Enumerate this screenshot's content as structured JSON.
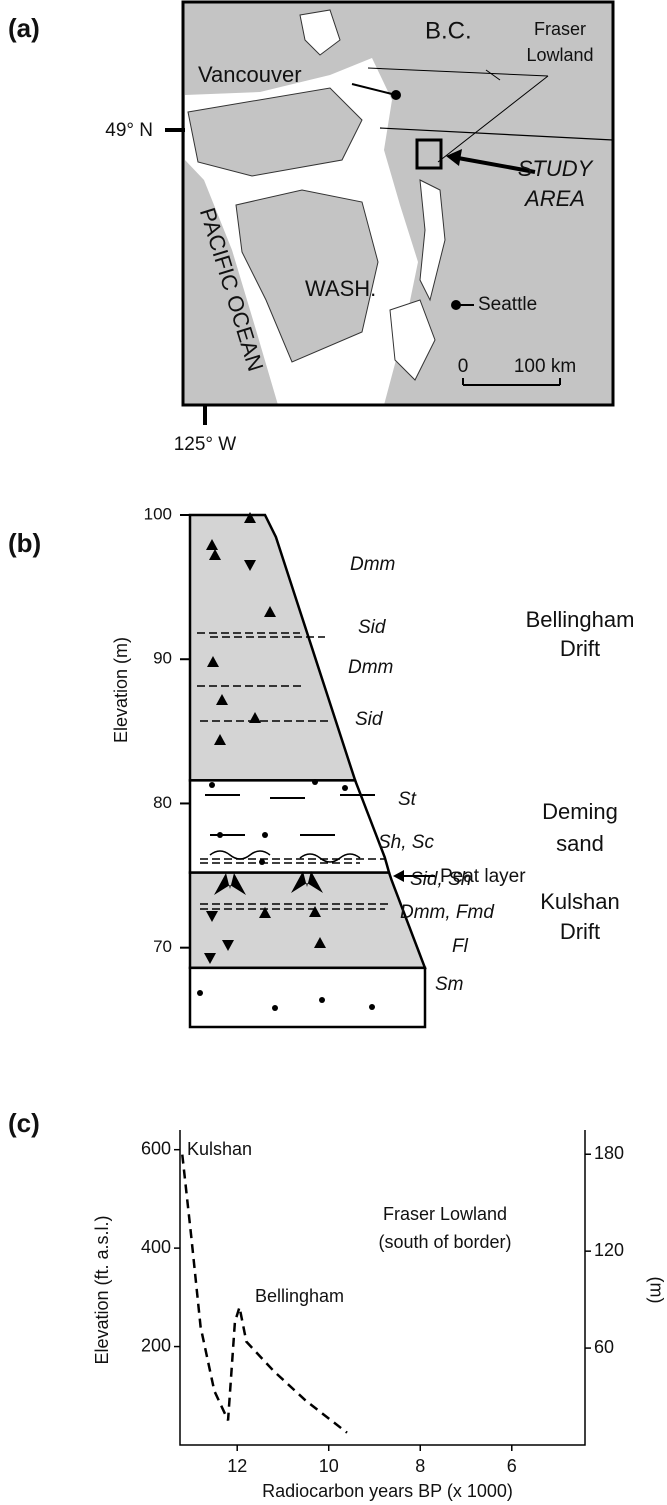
{
  "panel_labels": [
    "(a)",
    "(b)",
    "(c)"
  ],
  "map": {
    "region_labels": [
      "B.C.",
      "WASH."
    ],
    "ocean": "PACIFIC OCEAN",
    "cities": [
      "Vancouver",
      "Seattle"
    ],
    "lowland": [
      "Fraser",
      "Lowland"
    ],
    "study_area": [
      "STUDY",
      "AREA"
    ],
    "latitude": "49° N",
    "longitude": "125° W",
    "scale": [
      "0",
      "100 km"
    ]
  },
  "chart_data": [
    {
      "type": "column",
      "ylabel": "Elevation (m)",
      "ylim": [
        64.5,
        100
      ],
      "yticks": [
        70,
        80,
        90,
        100
      ],
      "layers": [
        {
          "top": 100,
          "bottom": 81.6,
          "color": "#d4d4d4"
        },
        {
          "top": 81.6,
          "bottom": 75.2,
          "color": "#ffffff"
        },
        {
          "top": 75.2,
          "bottom": 68.6,
          "color": "#d4d4d4"
        },
        {
          "top": 68.6,
          "bottom": 64.5,
          "color": "#ffffff"
        }
      ],
      "unit_labels": [
        [
          "Bellingham",
          "Drift"
        ],
        [
          "Deming",
          "sand"
        ],
        [
          "Kulshan",
          "Drift"
        ]
      ],
      "facies": [
        "Dmm",
        "Sid",
        "Dmm",
        "Sid",
        "St",
        "Sh, Sc",
        "Sid, Sh",
        "Dmm, Fmd",
        "Fl",
        "Sm"
      ],
      "peat_label": "Peat layer"
    },
    {
      "type": "line",
      "xlabel": "Radiocarbon years BP (x 1000)",
      "ylabel": "Elevation (ft. a.s.l.)",
      "y2label": "(m)",
      "xlim": [
        13.25,
        4.4
      ],
      "xticks": [
        12,
        10,
        8,
        6
      ],
      "ylim": [
        0,
        640
      ],
      "yticks": [
        200,
        400,
        600
      ],
      "y2lim": [
        0,
        195
      ],
      "y2ticks": [
        60,
        120,
        180
      ],
      "x": [
        13.2,
        13.0,
        12.8,
        12.5,
        12.2,
        12.05,
        11.95,
        11.8,
        11.2,
        10.5,
        9.6
      ],
      "values": [
        590,
        420,
        240,
        110,
        50,
        250,
        280,
        210,
        150,
        90,
        25
      ],
      "color": "#000000",
      "line_style": "dashed",
      "annotations": [
        "Kulshan",
        "Bellingham",
        "Fraser Lowland",
        "(south of border)"
      ]
    }
  ]
}
